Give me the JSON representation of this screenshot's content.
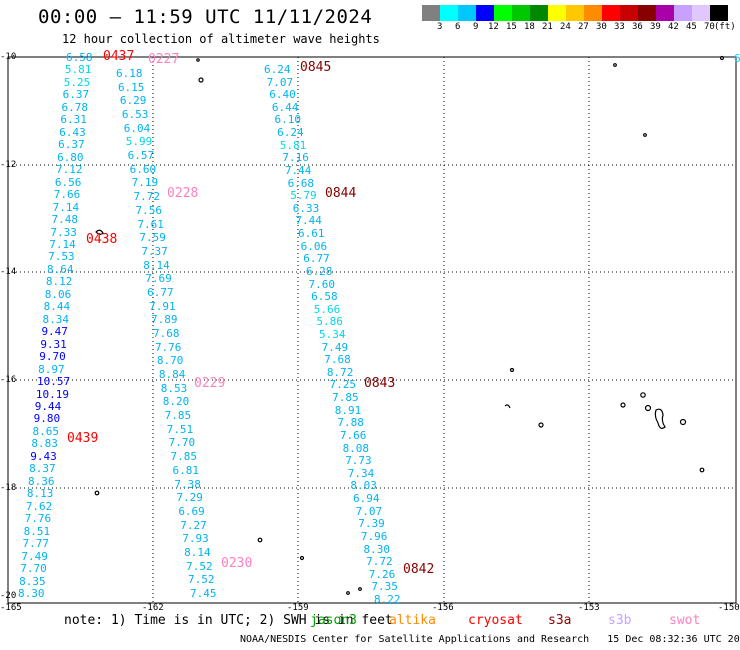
{
  "header": {
    "title": "00:00 – 11:59 UTC 11/11/2024",
    "subtitle": "12 hour collection of altimeter wave heights"
  },
  "legend": {
    "unit": "(ft)",
    "colors": [
      "#808080",
      "#00ffff",
      "#00c8ff",
      "#0000ff",
      "#00ff00",
      "#00c800",
      "#008800",
      "#ffff00",
      "#ffc800",
      "#ff8c00",
      "#ff0000",
      "#c80000",
      "#880000",
      "#aa00aa",
      "#c8a0ff",
      "#e0c8ff",
      "#000000"
    ],
    "labels": [
      "3",
      "6",
      "9",
      "12",
      "15",
      "18",
      "21",
      "24",
      "27",
      "30",
      "33",
      "36",
      "39",
      "42",
      "45",
      "70"
    ]
  },
  "axes": {
    "lat_labels": [
      "-10",
      "-12",
      "-14",
      "-16",
      "-18",
      "-20"
    ],
    "lon_labels": [
      "-165",
      "-162",
      "-159",
      "-156",
      "-153",
      "-150"
    ],
    "right_edge_value": "6"
  },
  "tracks": [
    {
      "values": [
        "6.58",
        "5.81",
        "5.25",
        "6.37",
        "6.78",
        "6.31",
        "6.43",
        "6.37",
        "6.80",
        "7.12",
        "6.56",
        "7.66",
        "7.14",
        "7.48",
        "7.33",
        "7.14",
        "7.53",
        "8.64",
        "8.12",
        "8.06",
        "8.44",
        "8.34",
        "9.47",
        "9.31",
        "9.70",
        "8.97",
        "10.57",
        "10.19",
        "9.44",
        "9.80",
        "8.65",
        "8.83",
        "9.43",
        "8.37",
        "8.36",
        "8.13",
        "7.62",
        "7.76",
        "8.51",
        "7.77",
        "7.49",
        "7.70",
        "8.35",
        "8.30"
      ]
    },
    {
      "values": [
        "6.18",
        "6.15",
        "6.29",
        "6.53",
        "6.04",
        "5.99",
        "6.57",
        "6.60",
        "7.19",
        "7.72",
        "7.56",
        "7.61",
        "7.59",
        "7.37",
        "8.14",
        "7.69",
        "6.77",
        "7.91",
        "7.89",
        "7.68",
        "7.76",
        "8.70",
        "8.84",
        "8.53",
        "8.20",
        "7.85",
        "7.51",
        "7.70",
        "7.85",
        "6.81",
        "7.38",
        "7.29",
        "6.69",
        "7.27",
        "7.93",
        "8.14",
        "7.52",
        "7.52",
        "7.45"
      ]
    },
    {
      "values": [
        "6.24",
        "7.07",
        "6.40",
        "6.44",
        "6.10",
        "6.24",
        "5.81",
        "7.16",
        "7.44",
        "6.68",
        "5.79",
        "6.33",
        "7.44",
        "6.61",
        "6.06",
        "6.77",
        "6.28",
        "7.60",
        "6.58",
        "5.66",
        "5.86",
        "5.34",
        "7.49",
        "7.68",
        "8.72",
        "7.25",
        "7.85",
        "8.91",
        "7.88",
        "7.66",
        "8.08",
        "7.73",
        "7.34",
        "8.03",
        "6.94",
        "7.07",
        "7.39",
        "7.96",
        "8.30",
        "7.72",
        "7.26",
        "7.35",
        "8.22"
      ]
    }
  ],
  "time_tags": [
    "0437",
    "0227",
    "0845",
    "0228",
    "0844",
    "0438",
    "0229",
    "0843",
    "0439",
    "0230",
    "0842"
  ],
  "footer": {
    "note": "note:  1) Time is in UTC;  2) SWH is in feet",
    "satellites": [
      {
        "name": "jason3",
        "color": "#00a000"
      },
      {
        "name": "altika",
        "color": "#ff8c00"
      },
      {
        "name": "cryosat",
        "color": "#ff0000"
      },
      {
        "name": "s3a",
        "color": "#880000"
      },
      {
        "name": "s3b",
        "color": "#c8a0ff"
      },
      {
        "name": "swot",
        "color": "#ff80c0"
      }
    ],
    "credit": "NOAA/NESDIS Center for Satellite Applications and Research",
    "generated": "15 Dec 08:32:36 UTC 2024"
  }
}
